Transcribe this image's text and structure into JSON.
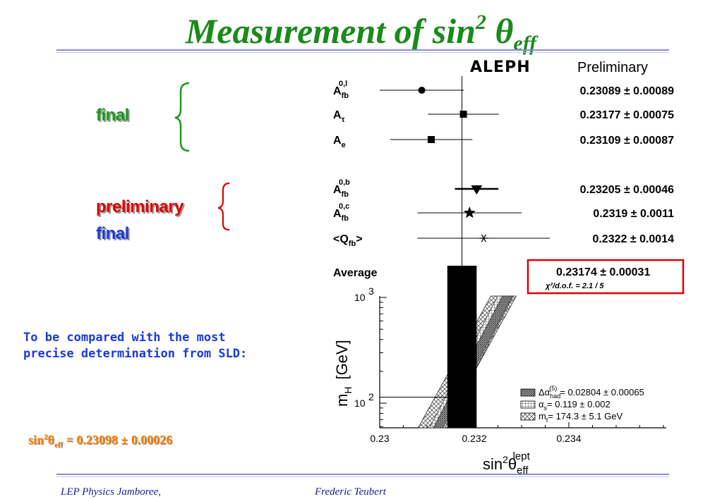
{
  "title": {
    "main": "Measurement of sin",
    "sup": "2",
    "theta": "θ",
    "sub": "eff"
  },
  "labels": {
    "final_green": "final",
    "preliminary": "preliminary",
    "final_blue": "final"
  },
  "note": "To be compared with the most precise determination from SLD:",
  "sld_result": {
    "prefix": "sin",
    "sup": "2",
    "theta": "θ",
    "sub": "eff",
    "value": " = 0.23098 ± 0.00026"
  },
  "footer": {
    "left": "LEP Physics Jamboree,",
    "center": "Frederic Teubert"
  },
  "colors": {
    "green": "#1a9a1a",
    "red": "#e00000",
    "blue": "#1a3ad8",
    "orange": "#ff8000",
    "box_red": "#e00000"
  },
  "chart_data": {
    "type": "scatter",
    "header": {
      "experiment": "ALEPH",
      "status": "Preliminary"
    },
    "measurements": [
      {
        "label": "A",
        "sub": "fb",
        "sup": "0,l",
        "value": 0.23089,
        "error": 0.00089,
        "text": "0.23089 ± 0.00089",
        "marker": "circle"
      },
      {
        "label": "A",
        "sub": "τ",
        "sup": "",
        "value": 0.23177,
        "error": 0.00075,
        "text": "0.23177 ± 0.00075",
        "marker": "square"
      },
      {
        "label": "A",
        "sub": "e",
        "sup": "",
        "value": 0.23109,
        "error": 0.00087,
        "text": "0.23109 ± 0.00087",
        "marker": "square"
      },
      {
        "label": "A",
        "sub": "fb",
        "sup": "0,b",
        "value": 0.23205,
        "error": 0.00046,
        "text": "0.23205 ± 0.00046",
        "marker": "triangle-down"
      },
      {
        "label": "A",
        "sub": "fb",
        "sup": "0,c",
        "value": 0.2319,
        "error": 0.0011,
        "text": "0.2319  ±  0.0011",
        "marker": "star"
      },
      {
        "label": "<Q",
        "sub": "fb",
        "sup": "",
        "suffix": ">",
        "value": 0.2322,
        "error": 0.0014,
        "text": "0.2322 ± 0.0014",
        "marker": "asterisk"
      }
    ],
    "average": {
      "label": "Average",
      "value": 0.23174,
      "error": 0.00031,
      "text": "0.23174 ± 0.00031",
      "chi2": "χ²/d.o.f. =  2.1 / 5"
    },
    "xlabel": {
      "base": "sin",
      "sup2": "2",
      "theta": "θ",
      "sub": "eff",
      "sup": "lept"
    },
    "ylabel": {
      "m": "m",
      "sub": "H",
      "unit": "[GeV]"
    },
    "xlim": [
      0.23,
      0.236
    ],
    "xticks": [
      0.23,
      0.232,
      0.234
    ],
    "xtick_labels": [
      "0.23",
      "0.232",
      "0.234"
    ],
    "yscale": "log",
    "ylim": [
      50,
      1000
    ],
    "yticks": [
      100,
      1000
    ],
    "ytick_labels": [
      {
        "base": "10",
        "exp": "2"
      },
      {
        "base": "10",
        "exp": "3"
      }
    ],
    "mh_line": 114,
    "legend": [
      {
        "text": "Δα",
        "sub": "had",
        "sup": "(5)",
        "rest": "= 0.02804 ± 0.00065",
        "pattern": "dense"
      },
      {
        "text": "α",
        "sub": "s",
        "sup": "",
        "rest": "= 0.119 ± 0.002",
        "pattern": "grid"
      },
      {
        "text": "m",
        "sub": "t",
        "sup": "",
        "rest": "= 174.3 ± 5.1 GeV",
        "pattern": "cross"
      }
    ],
    "legend_position": "bottom-right"
  }
}
